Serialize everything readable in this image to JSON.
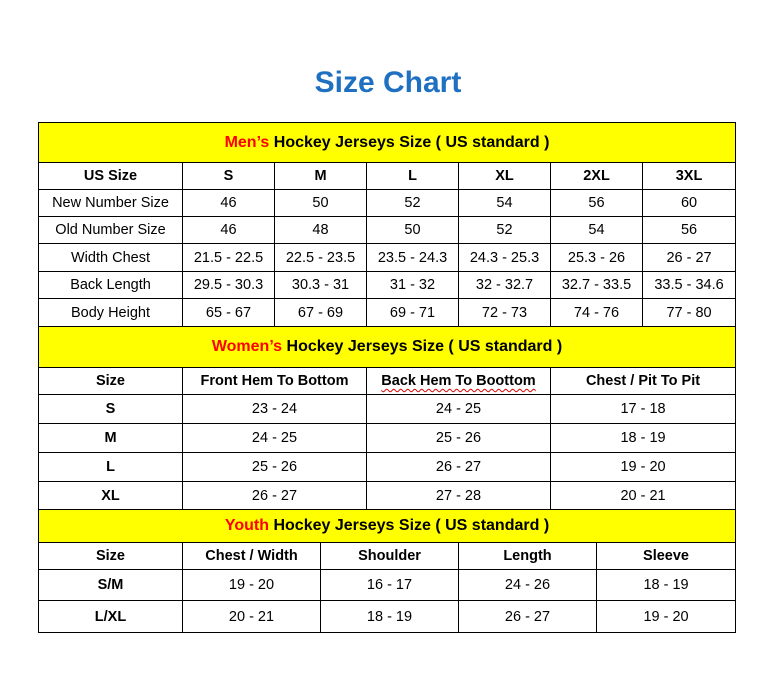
{
  "title": "Size Chart",
  "men": {
    "band_accent": "Men’s",
    "band_text": " Hockey Jerseys Size ( US standard )",
    "headers": [
      "US Size",
      "S",
      "M",
      "L",
      "XL",
      "2XL",
      "3XL"
    ],
    "rows": [
      [
        "New Number Size",
        "46",
        "50",
        "52",
        "54",
        "56",
        "60"
      ],
      [
        "Old Number Size",
        "46",
        "48",
        "50",
        "52",
        "54",
        "56"
      ],
      [
        "Width Chest",
        "21.5 - 22.5",
        "22.5 - 23.5",
        "23.5 - 24.3",
        "24.3 - 25.3",
        "25.3 - 26",
        "26 - 27"
      ],
      [
        "Back Length",
        "29.5 - 30.3",
        "30.3 - 31",
        "31 - 32",
        "32 - 32.7",
        "32.7 - 33.5",
        "33.5 - 34.6"
      ],
      [
        "Body Height",
        "65 - 67",
        "67 - 69",
        "69 - 71",
        "72 - 73",
        "74 - 76",
        "77 - 80"
      ]
    ]
  },
  "women": {
    "band_accent": "Women’s",
    "band_text": " Hockey Jerseys Size ( US standard )",
    "headers": [
      "Size",
      "Front Hem To Bottom",
      "Back Hem To Boottom",
      "Chest / Pit To Pit"
    ],
    "rows": [
      [
        "S",
        "23 - 24",
        "24 - 25",
        "17 - 18"
      ],
      [
        "M",
        "24 - 25",
        "25 - 26",
        "18 - 19"
      ],
      [
        "L",
        "25 - 26",
        "26 - 27",
        "19 - 20"
      ],
      [
        "XL",
        "26 - 27",
        "27 - 28",
        "20 - 21"
      ]
    ]
  },
  "youth": {
    "band_accent": "Youth",
    "band_text": " Hockey Jerseys Size ( US standard )",
    "headers": [
      "Size",
      "Chest / Width",
      "Shoulder",
      "Length",
      "Sleeve"
    ],
    "rows": [
      [
        "S/M",
        "19 - 20",
        "16 - 17",
        "24 - 26",
        "18 - 19"
      ],
      [
        "L/XL",
        "20 - 21",
        "18 - 19",
        "26 - 27",
        "19 - 20"
      ]
    ]
  },
  "colors": {
    "title": "#1f70c1",
    "band": "#ffff00",
    "accent": "#ff0000"
  }
}
